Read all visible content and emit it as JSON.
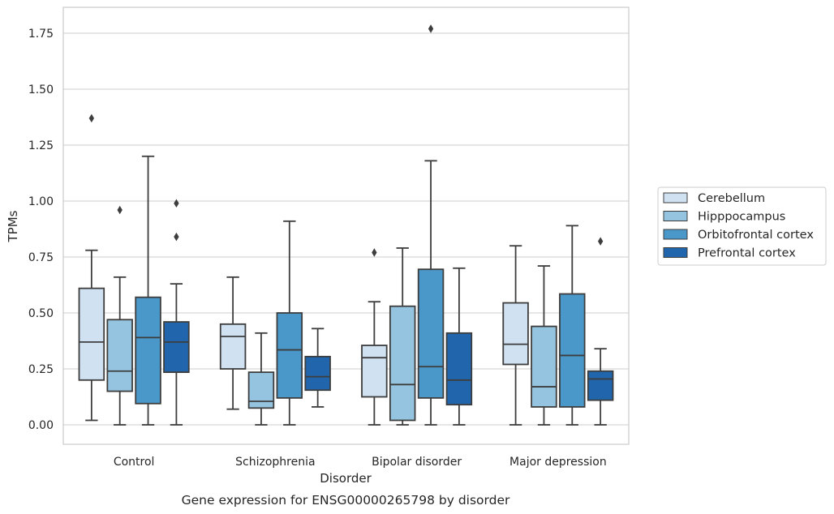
{
  "chart_data": {
    "type": "box",
    "title": "",
    "caption": "Gene expression for ENSG00000265798 by disorder",
    "xlabel": "Disorder",
    "ylabel": "TPMs",
    "ylim": [
      -0.08,
      1.86
    ],
    "yticks": [
      0.0,
      0.25,
      0.5,
      0.75,
      1.0,
      1.25,
      1.5,
      1.75
    ],
    "ytick_labels": [
      "0.00",
      "0.25",
      "0.50",
      "0.75",
      "1.00",
      "1.25",
      "1.50",
      "1.75"
    ],
    "grid": true,
    "legend_position": "right",
    "categories": [
      "Control",
      "Schizophrenia",
      "Bipolar disorder",
      "Major depression"
    ],
    "series": [
      {
        "name": "Cerebellum",
        "color": "#d0e1f2",
        "boxes": [
          {
            "whislo": 0.02,
            "q1": 0.2,
            "med": 0.37,
            "q3": 0.61,
            "whishi": 0.78,
            "fliers": [
              1.37
            ]
          },
          {
            "whislo": 0.07,
            "q1": 0.25,
            "med": 0.395,
            "q3": 0.45,
            "whishi": 0.66,
            "fliers": []
          },
          {
            "whislo": 0.0,
            "q1": 0.125,
            "med": 0.3,
            "q3": 0.355,
            "whishi": 0.55,
            "fliers": [
              0.77
            ]
          },
          {
            "whislo": 0.0,
            "q1": 0.27,
            "med": 0.36,
            "q3": 0.545,
            "whishi": 0.8,
            "fliers": []
          }
        ]
      },
      {
        "name": "Hipppocampus",
        "color": "#94c4df",
        "boxes": [
          {
            "whislo": 0.0,
            "q1": 0.15,
            "med": 0.24,
            "q3": 0.47,
            "whishi": 0.66,
            "fliers": [
              0.96
            ]
          },
          {
            "whislo": 0.0,
            "q1": 0.075,
            "med": 0.105,
            "q3": 0.235,
            "whishi": 0.41,
            "fliers": []
          },
          {
            "whislo": 0.0,
            "q1": 0.02,
            "med": 0.18,
            "q3": 0.53,
            "whishi": 0.79,
            "fliers": []
          },
          {
            "whislo": 0.0,
            "q1": 0.08,
            "med": 0.17,
            "q3": 0.44,
            "whishi": 0.71,
            "fliers": []
          }
        ]
      },
      {
        "name": "Orbitofrontal cortex",
        "color": "#4a98c9",
        "boxes": [
          {
            "whislo": 0.0,
            "q1": 0.095,
            "med": 0.39,
            "q3": 0.57,
            "whishi": 1.2,
            "fliers": []
          },
          {
            "whislo": 0.0,
            "q1": 0.12,
            "med": 0.335,
            "q3": 0.5,
            "whishi": 0.91,
            "fliers": []
          },
          {
            "whislo": 0.0,
            "q1": 0.12,
            "med": 0.26,
            "q3": 0.695,
            "whishi": 1.18,
            "fliers": [
              1.77
            ]
          },
          {
            "whislo": 0.0,
            "q1": 0.08,
            "med": 0.31,
            "q3": 0.585,
            "whishi": 0.89,
            "fliers": []
          }
        ]
      },
      {
        "name": "Prefrontal cortex",
        "color": "#2166ac",
        "boxes": [
          {
            "whislo": 0.0,
            "q1": 0.235,
            "med": 0.37,
            "q3": 0.46,
            "whishi": 0.63,
            "fliers": [
              0.84,
              0.99
            ]
          },
          {
            "whislo": 0.08,
            "q1": 0.155,
            "med": 0.215,
            "q3": 0.305,
            "whishi": 0.43,
            "fliers": []
          },
          {
            "whislo": 0.0,
            "q1": 0.09,
            "med": 0.2,
            "q3": 0.41,
            "whishi": 0.7,
            "fliers": []
          },
          {
            "whislo": 0.0,
            "q1": 0.11,
            "med": 0.205,
            "q3": 0.24,
            "whishi": 0.34,
            "fliers": [
              0.82
            ]
          }
        ]
      }
    ]
  }
}
